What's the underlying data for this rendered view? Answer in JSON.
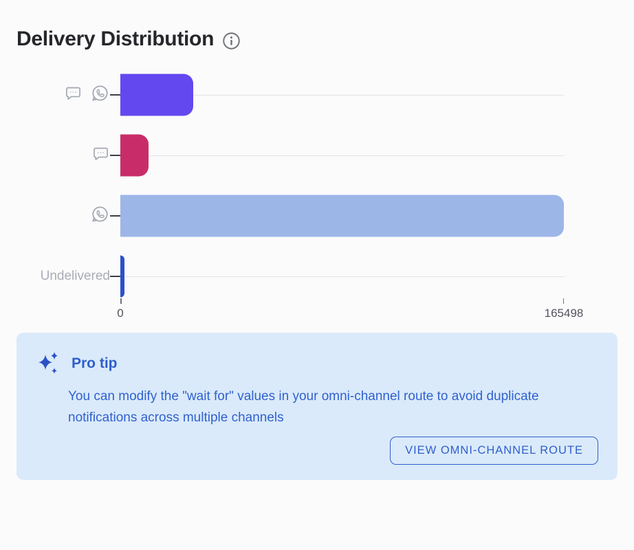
{
  "page": {
    "title": "Delivery Distribution",
    "background_color": "#FBFBFC"
  },
  "icons": {
    "info": "info-circle-icon",
    "sms": "sms-chat-bubble-icon",
    "whatsapp": "whatsapp-icon",
    "sparkles": "sparkles-icon"
  },
  "chart_data": {
    "type": "bar",
    "orientation": "horizontal",
    "title": "Delivery Distribution",
    "categories": [
      "SMS + WhatsApp",
      "SMS",
      "WhatsApp",
      "Undelivered"
    ],
    "values": [
      27200,
      10500,
      165498,
      1500
    ],
    "colors": [
      "#6348F0",
      "#C92D69",
      "#9DB6E8",
      "#2B51C9"
    ],
    "xlim": [
      0,
      165498
    ],
    "x_ticks": [
      0,
      165498
    ],
    "x_tick_labels": {
      "min": "0",
      "max": "165498"
    },
    "row_labels": [
      {
        "icons": [
          "sms-chat-bubble-icon",
          "whatsapp-icon"
        ],
        "text": ""
      },
      {
        "icons": [
          "sms-chat-bubble-icon"
        ],
        "text": ""
      },
      {
        "icons": [
          "whatsapp-icon"
        ],
        "text": ""
      },
      {
        "icons": [],
        "text": "Undelivered"
      }
    ],
    "grid": "one horizontal line per row",
    "legend": "none",
    "bar_style": "rounded right corners, flat left edge at zero baseline"
  },
  "pro_tip": {
    "heading": "Pro tip",
    "body": "You can modify the \"wait for\" values in your omni-channel route to avoid duplicate notifications across multiple channels",
    "button_label": "VIEW OMNI-CHANNEL ROUTE",
    "accent_color": "#2E5ECC",
    "background_color": "#DAEAFA"
  }
}
